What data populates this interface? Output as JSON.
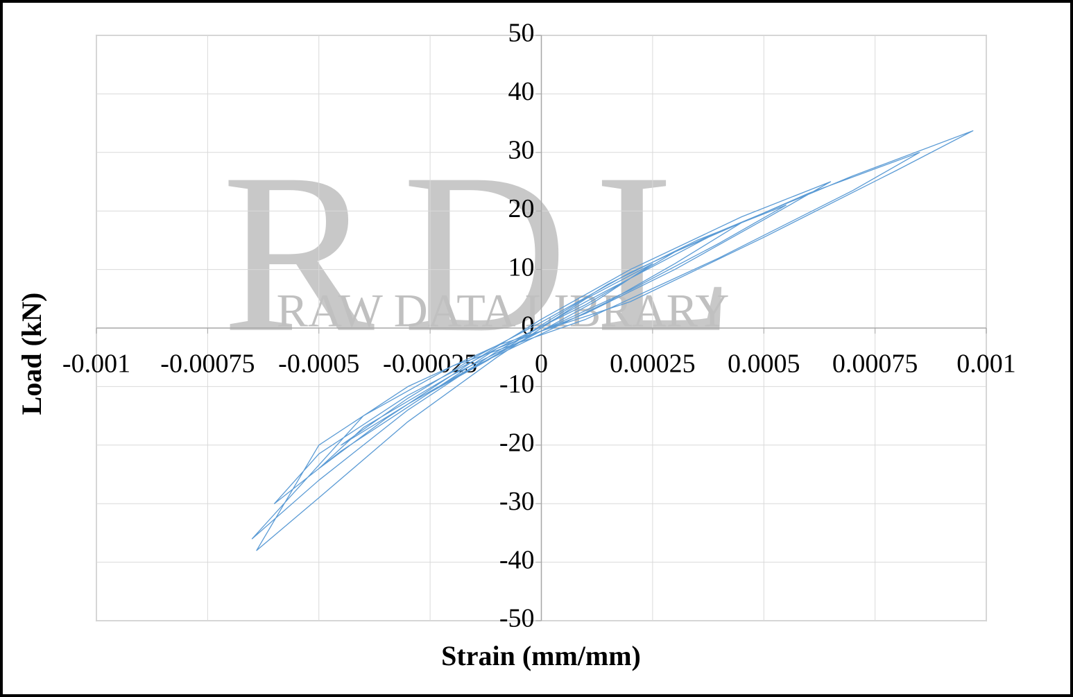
{
  "chart_data": {
    "type": "line",
    "xlabel": "Strain (mm/mm)",
    "ylabel": "Load (kN)",
    "watermark": {
      "logo": "RDL",
      "text": "RAW DATA LIBRARY"
    },
    "xlim": [
      -0.001,
      0.001
    ],
    "xticks": [
      -0.001,
      -0.00075,
      -0.0005,
      -0.00025,
      0,
      0.00025,
      0.0005,
      0.00075,
      0.001
    ],
    "ylim": [
      -50,
      50
    ],
    "yticks": [
      -50,
      -40,
      -30,
      -20,
      -10,
      0,
      10,
      20,
      30,
      40,
      50
    ],
    "grid": true,
    "series": [
      {
        "color": "#5b9bd5",
        "x": [
          0,
          0.0001,
          0.00025,
          0.00012,
          0,
          -0.0001,
          -0.00025,
          -0.00012,
          0,
          0.00015,
          0.00035,
          0.00045,
          0.0003,
          0.00015,
          0,
          -0.00015,
          -0.0003,
          -0.00045,
          -0.0003,
          -0.00015,
          0,
          0.0002,
          0.0004,
          0.00055,
          0.0004,
          0.0002,
          0,
          -0.0002,
          -0.0004,
          -0.0005,
          -0.00035,
          -0.00015,
          0,
          0.0002,
          0.00045,
          0.00065,
          0.0005,
          0.0003,
          0.0001,
          -0.0001,
          -0.0003,
          -0.0005,
          -0.0006,
          -0.00045,
          -0.00025,
          -0.0001,
          0.0001,
          0.0003,
          0.0006,
          0.00085,
          0.0007,
          0.0004,
          0.0001,
          -0.0002,
          -0.0004,
          -0.00065,
          -0.0005,
          -0.0003,
          -0.0001,
          0.0001,
          0.0004,
          0.0007,
          0.00097,
          0.0008,
          0.0005,
          0.0002,
          -0.0001,
          -0.0003,
          -0.0005,
          -0.00064,
          -0.0005,
          -0.0003,
          -0.0001,
          0
        ],
        "values": [
          0,
          5,
          11,
          4.5,
          -0.5,
          -4.5,
          -11,
          -5.5,
          0.5,
          7.5,
          15,
          18,
          11,
          4.5,
          -1,
          -6.5,
          -13,
          -20,
          -12,
          -5,
          1,
          9.5,
          16.5,
          21,
          14.5,
          6.5,
          -0.5,
          -8,
          -17,
          -24,
          -15.5,
          -5.5,
          1.5,
          10,
          19,
          25,
          18.5,
          10,
          2.5,
          -3.5,
          -11.5,
          -21.5,
          -30,
          -21,
          -11,
          -3.5,
          4,
          13,
          23,
          30,
          23.5,
          12,
          1.5,
          -6.5,
          -15,
          -36,
          -26,
          -14,
          -4,
          4.5,
          16.5,
          26,
          33.7,
          27,
          15.5,
          4.5,
          -3,
          -10,
          -20,
          -38,
          -29,
          -16,
          -5,
          0
        ]
      }
    ]
  }
}
